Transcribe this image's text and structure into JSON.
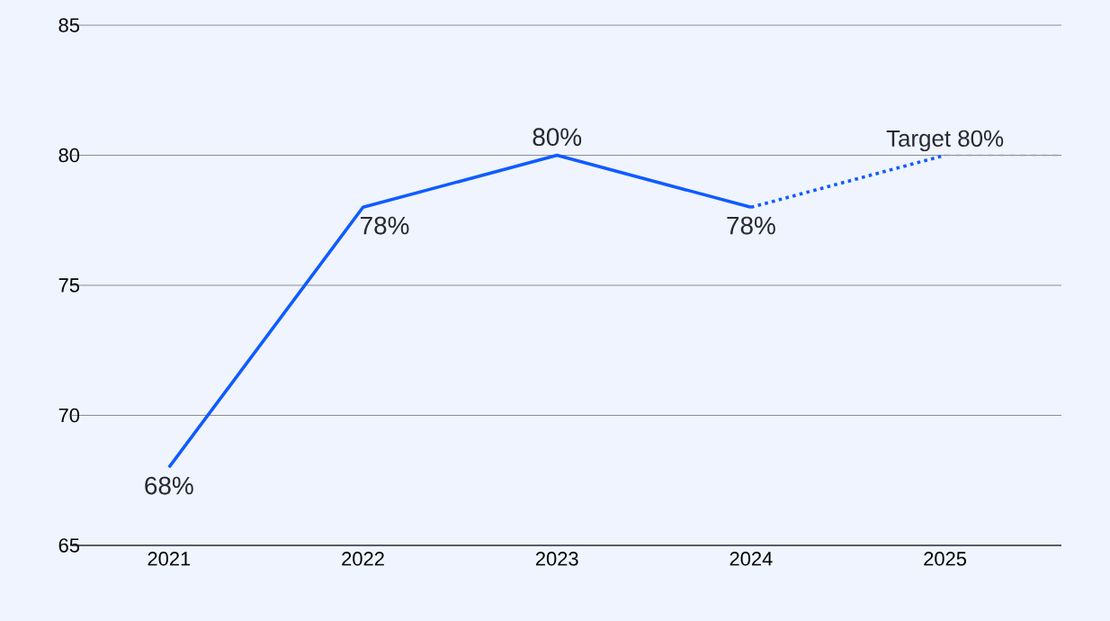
{
  "chart_data": {
    "type": "line",
    "categories": [
      "2021",
      "2022",
      "2023",
      "2024",
      "2025"
    ],
    "series": [
      {
        "color": "#0f5bff",
        "values": [
          68,
          78,
          80,
          78,
          null
        ],
        "value_labels": [
          "68%",
          "78%",
          "80%",
          "78%",
          null
        ],
        "line_style": "solid"
      },
      {
        "color": "#0f5bff",
        "values": [
          null,
          null,
          null,
          78,
          80
        ],
        "line_style": "dotted"
      }
    ],
    "ylim": [
      65,
      85
    ],
    "yticks": [
      65,
      70,
      75,
      80,
      85
    ],
    "grid": "y",
    "marker": "none",
    "ref_lines": [
      {
        "axis": "y",
        "value": 80,
        "label": "Target 80%",
        "color": "#999999",
        "line_style": "dashed"
      }
    ]
  }
}
